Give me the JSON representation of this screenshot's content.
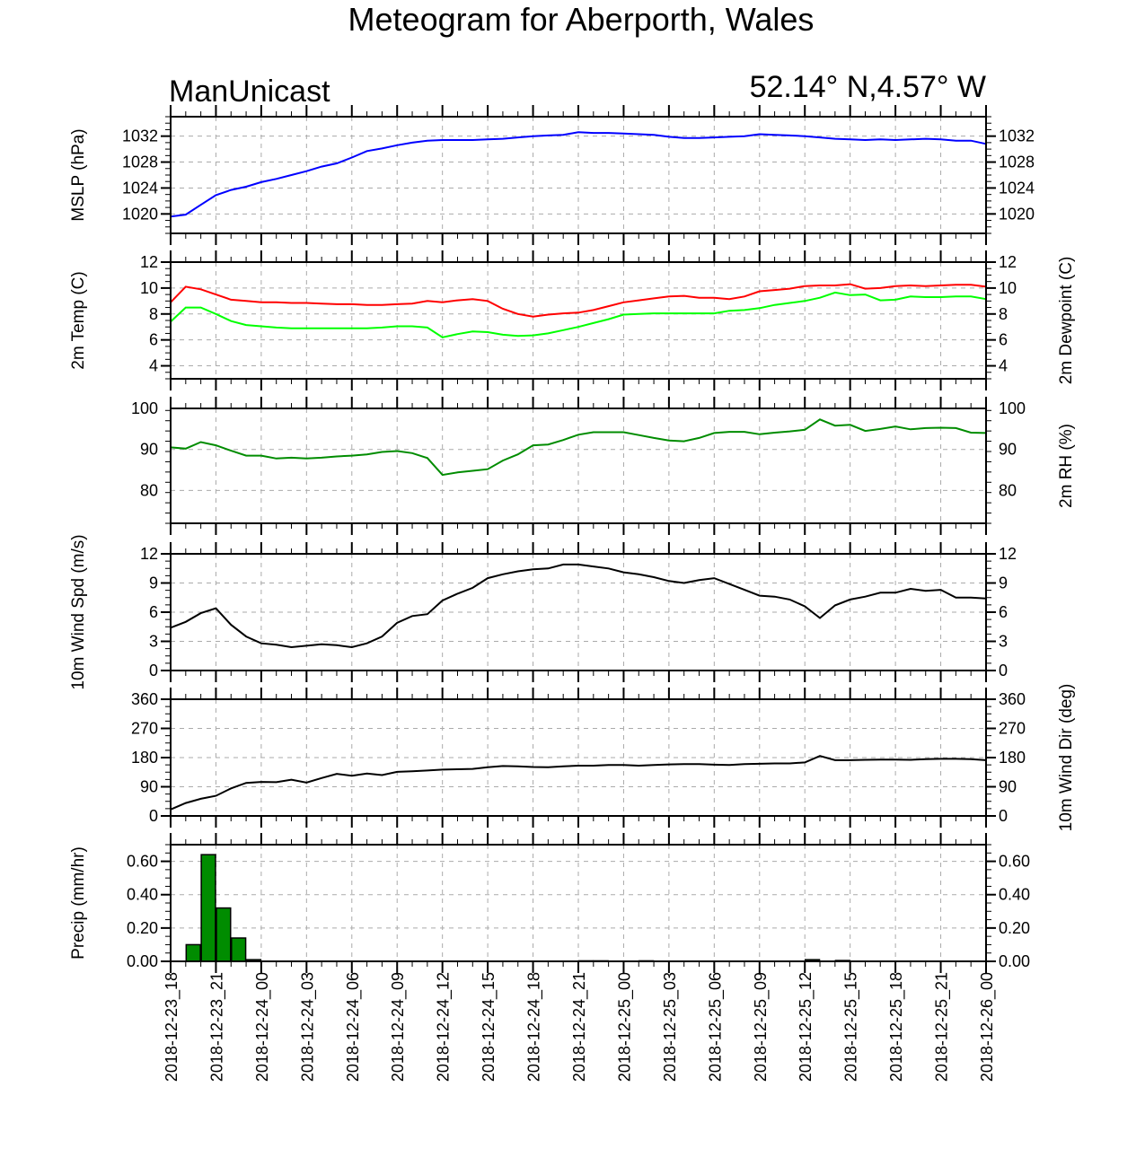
{
  "title": "Meteogram for Aberporth, Wales",
  "model": "ManUnicast",
  "location": "52.14° N,4.57° W",
  "x_labels": [
    "2018-12-23_18",
    "2018-12-23_21",
    "2018-12-24_00",
    "2018-12-24_03",
    "2018-12-24_06",
    "2018-12-24_09",
    "2018-12-24_12",
    "2018-12-24_15",
    "2018-12-24_18",
    "2018-12-24_21",
    "2018-12-25_00",
    "2018-12-25_03",
    "2018-12-25_06",
    "2018-12-25_09",
    "2018-12-25_12",
    "2018-12-25_15",
    "2018-12-25_18",
    "2018-12-25_21",
    "2018-12-26_00"
  ],
  "colors": {
    "mslp": "#0000ff",
    "temp": "#ff0000",
    "dewpoint": "#00ff00",
    "rh": "#008c00",
    "wind": "#000000",
    "precip": "#008c00"
  },
  "chart_data": [
    {
      "type": "line",
      "id": "mslp",
      "ylabel": "MSLP (hPa)",
      "ylim": [
        1017,
        1035
      ],
      "yticks": [
        1020,
        1024,
        1028,
        1032
      ],
      "ytick_labels": [
        "1020",
        "1024",
        "1028",
        "1032"
      ],
      "grid": true,
      "x_hours": [
        0,
        1,
        2,
        3,
        4,
        5,
        6,
        7,
        8,
        9,
        10,
        11,
        12,
        13,
        14,
        15,
        16,
        17,
        18,
        19,
        20,
        21,
        22,
        23,
        24,
        25,
        26,
        27,
        28,
        29,
        30,
        31,
        32,
        33,
        34,
        35,
        36,
        37,
        38,
        39,
        40,
        41,
        42,
        43,
        44,
        45,
        46,
        47,
        48,
        49,
        50,
        51,
        52,
        53,
        54
      ],
      "series": [
        {
          "color_key": "mslp",
          "values": [
            1019.6,
            1019.9,
            1021.4,
            1022.9,
            1023.7,
            1024.2,
            1024.9,
            1025.4,
            1026.0,
            1026.6,
            1027.3,
            1027.8,
            1028.7,
            1029.7,
            1030.1,
            1030.6,
            1031.0,
            1031.3,
            1031.4,
            1031.4,
            1031.4,
            1031.5,
            1031.6,
            1031.8,
            1032.0,
            1032.1,
            1032.2,
            1032.6,
            1032.5,
            1032.5,
            1032.4,
            1032.3,
            1032.2,
            1031.9,
            1031.7,
            1031.7,
            1031.8,
            1031.9,
            1032.0,
            1032.3,
            1032.2,
            1032.1,
            1032.0,
            1031.8,
            1031.6,
            1031.5,
            1031.4,
            1031.5,
            1031.4,
            1031.5,
            1031.6,
            1031.5,
            1031.3,
            1031.3,
            1030.8
          ]
        }
      ]
    },
    {
      "type": "line",
      "id": "temp",
      "ylabel": "2m Temp (C)",
      "ylabel_right": "2m Dewpoint (C)",
      "ylim": [
        3,
        12
      ],
      "yticks": [
        4,
        6,
        8,
        10,
        12
      ],
      "ytick_labels": [
        "4",
        "6",
        "8",
        "10",
        "12"
      ],
      "grid": true,
      "x_hours": [
        0,
        1,
        2,
        3,
        4,
        5,
        6,
        7,
        8,
        9,
        10,
        11,
        12,
        13,
        14,
        15,
        16,
        17,
        18,
        19,
        20,
        21,
        22,
        23,
        24,
        25,
        26,
        27,
        28,
        29,
        30,
        31,
        32,
        33,
        34,
        35,
        36,
        37,
        38,
        39,
        40,
        41,
        42,
        43,
        44,
        45,
        46,
        47,
        48,
        49,
        50,
        51,
        52,
        53,
        54
      ],
      "series": [
        {
          "color_key": "temp",
          "values": [
            8.9,
            10.1,
            9.9,
            9.5,
            9.1,
            9.0,
            8.9,
            8.9,
            8.85,
            8.85,
            8.8,
            8.75,
            8.75,
            8.7,
            8.7,
            8.75,
            8.8,
            9.0,
            8.9,
            9.05,
            9.15,
            9.0,
            8.4,
            8.0,
            7.8,
            7.95,
            8.05,
            8.1,
            8.3,
            8.6,
            8.9,
            9.05,
            9.2,
            9.35,
            9.4,
            9.25,
            9.25,
            9.15,
            9.35,
            9.75,
            9.85,
            9.95,
            10.15,
            10.2,
            10.2,
            10.3,
            9.95,
            10.0,
            10.15,
            10.2,
            10.15,
            10.2,
            10.25,
            10.25,
            10.1
          ]
        },
        {
          "color_key": "dewpoint",
          "values": [
            7.4,
            8.5,
            8.5,
            8.0,
            7.45,
            7.15,
            7.05,
            6.95,
            6.9,
            6.9,
            6.9,
            6.9,
            6.9,
            6.9,
            6.95,
            7.05,
            7.05,
            6.95,
            6.2,
            6.45,
            6.65,
            6.6,
            6.4,
            6.3,
            6.35,
            6.5,
            6.75,
            7.0,
            7.3,
            7.6,
            7.95,
            8.0,
            8.05,
            8.05,
            8.05,
            8.05,
            8.05,
            8.25,
            8.3,
            8.45,
            8.7,
            8.85,
            9.0,
            9.25,
            9.65,
            9.45,
            9.5,
            9.05,
            9.1,
            9.35,
            9.3,
            9.3,
            9.35,
            9.35,
            9.15
          ]
        }
      ]
    },
    {
      "type": "line",
      "id": "rh",
      "ylabel_right": "2m RH (%)",
      "ylim": [
        72,
        100
      ],
      "yticks": [
        80,
        90,
        100
      ],
      "ytick_labels": [
        "80",
        "90",
        "100"
      ],
      "grid": true,
      "x_hours": [
        0,
        1,
        2,
        3,
        4,
        5,
        6,
        7,
        8,
        9,
        10,
        11,
        12,
        13,
        14,
        15,
        16,
        17,
        18,
        19,
        20,
        21,
        22,
        23,
        24,
        25,
        26,
        27,
        28,
        29,
        30,
        31,
        32,
        33,
        34,
        35,
        36,
        37,
        38,
        39,
        40,
        41,
        42,
        43,
        44,
        45,
        46,
        47,
        48,
        49,
        50,
        51,
        52,
        53,
        54
      ],
      "series": [
        {
          "color_key": "rh",
          "values": [
            90.5,
            90.2,
            91.8,
            91.0,
            89.7,
            88.5,
            88.5,
            87.8,
            88.0,
            87.8,
            88.0,
            88.3,
            88.5,
            88.8,
            89.4,
            89.6,
            89.1,
            87.9,
            83.8,
            84.4,
            84.8,
            85.2,
            87.3,
            88.8,
            91.0,
            91.2,
            92.3,
            93.6,
            94.2,
            94.2,
            94.2,
            93.5,
            92.8,
            92.2,
            92.0,
            92.8,
            94.0,
            94.3,
            94.3,
            93.7,
            94.1,
            94.4,
            94.8,
            97.3,
            95.8,
            96.0,
            94.5,
            95.0,
            95.6,
            94.9,
            95.2,
            95.3,
            95.2,
            94.1,
            94.0
          ]
        }
      ]
    },
    {
      "type": "line",
      "id": "wind_speed",
      "ylabel": "10m Wind Spd (m/s)",
      "ylim": [
        0,
        12
      ],
      "yticks": [
        0,
        3,
        6,
        9,
        12
      ],
      "ytick_labels": [
        "0",
        "3",
        "6",
        "9",
        "12"
      ],
      "grid": true,
      "x_hours": [
        0,
        1,
        2,
        3,
        4,
        5,
        6,
        7,
        8,
        9,
        10,
        11,
        12,
        13,
        14,
        15,
        16,
        17,
        18,
        19,
        20,
        21,
        22,
        23,
        24,
        25,
        26,
        27,
        28,
        29,
        30,
        31,
        32,
        33,
        34,
        35,
        36,
        37,
        38,
        39,
        40,
        41,
        42,
        43,
        44,
        45,
        46,
        47,
        48,
        49,
        50,
        51,
        52,
        53,
        54
      ],
      "series": [
        {
          "color_key": "wind",
          "values": [
            4.4,
            5.0,
            5.9,
            6.4,
            4.7,
            3.5,
            2.8,
            2.65,
            2.4,
            2.55,
            2.7,
            2.6,
            2.4,
            2.8,
            3.5,
            4.9,
            5.6,
            5.8,
            7.2,
            7.9,
            8.5,
            9.5,
            9.9,
            10.2,
            10.4,
            10.5,
            10.9,
            10.9,
            10.7,
            10.5,
            10.1,
            9.9,
            9.6,
            9.2,
            9.0,
            9.3,
            9.5,
            8.9,
            8.3,
            7.7,
            7.6,
            7.3,
            6.6,
            5.4,
            6.7,
            7.3,
            7.6,
            8.0,
            8.0,
            8.4,
            8.2,
            8.3,
            7.5,
            7.5,
            7.4
          ]
        }
      ]
    },
    {
      "type": "line",
      "id": "wind_dir",
      "ylabel_right": "10m Wind Dir (deg)",
      "ylim": [
        0,
        360
      ],
      "yticks": [
        0,
        90,
        180,
        270,
        360
      ],
      "ytick_labels": [
        "0",
        "90",
        "180",
        "270",
        "360"
      ],
      "grid": true,
      "x_hours": [
        0,
        1,
        2,
        3,
        4,
        5,
        6,
        7,
        8,
        9,
        10,
        11,
        12,
        13,
        14,
        15,
        16,
        17,
        18,
        19,
        20,
        21,
        22,
        23,
        24,
        25,
        26,
        27,
        28,
        29,
        30,
        31,
        32,
        33,
        34,
        35,
        36,
        37,
        38,
        39,
        40,
        41,
        42,
        43,
        44,
        45,
        46,
        47,
        48,
        49,
        50,
        51,
        52,
        53,
        54
      ],
      "series": [
        {
          "color_key": "wind",
          "values": [
            20,
            40,
            53,
            62,
            85,
            102,
            105,
            104,
            112,
            103,
            117,
            130,
            124,
            131,
            126,
            136,
            138,
            140,
            143,
            144,
            145,
            150,
            154,
            153,
            151,
            150,
            153,
            155,
            155,
            157,
            157,
            155,
            157,
            159,
            160,
            160,
            158,
            157,
            160,
            161,
            162,
            162,
            165,
            185,
            172,
            172,
            173,
            174,
            174,
            173,
            175,
            176,
            176,
            175,
            172
          ]
        }
      ]
    },
    {
      "type": "bar",
      "id": "precip",
      "ylabel": "Precip (mm/hr)",
      "ylim": [
        0,
        0.7
      ],
      "yticks": [
        0.0,
        0.2,
        0.4,
        0.6
      ],
      "ytick_labels": [
        "0.00",
        "0.20",
        "0.40",
        "0.60"
      ],
      "grid": true,
      "x_hours": [
        1,
        2,
        3,
        4,
        5,
        27,
        28,
        31,
        42,
        44
      ],
      "series": [
        {
          "color_key": "precip",
          "values": [
            0.1,
            0.64,
            0.32,
            0.14,
            0.01,
            0.003,
            0.003,
            0.003,
            0.01,
            0.005
          ]
        }
      ]
    }
  ]
}
